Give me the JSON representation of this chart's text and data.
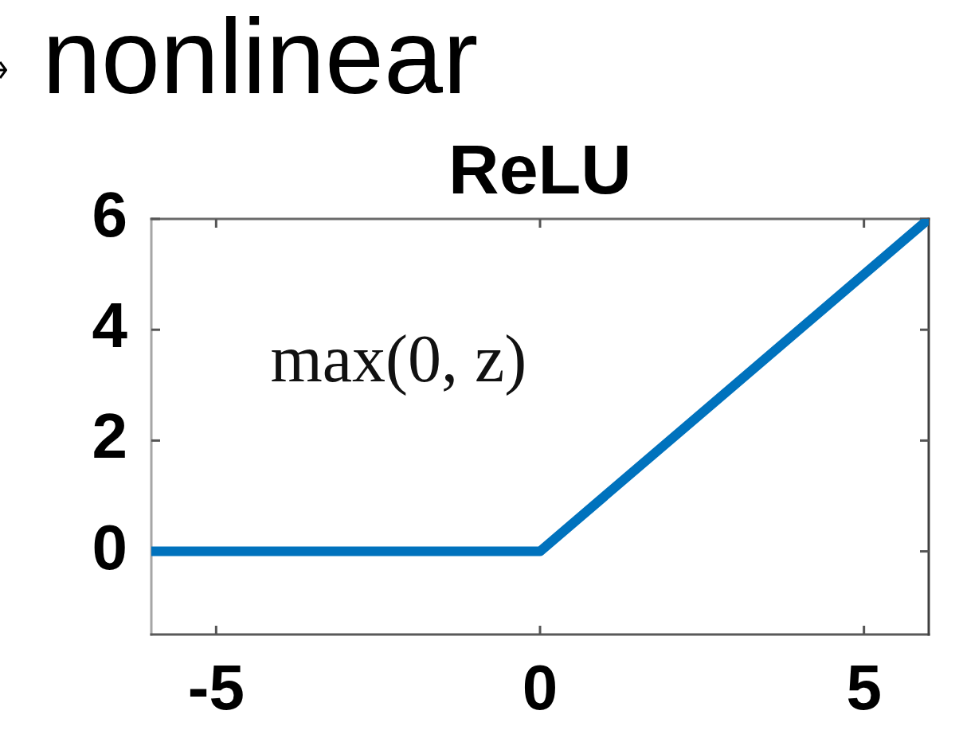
{
  "chart_data": {
    "type": "line",
    "title": "ReLU",
    "annotations": [
      "nonlinear",
      "max(0, z)"
    ],
    "x": [
      -6,
      0,
      6
    ],
    "series": [
      {
        "color": "#0072bd",
        "values": [
          0,
          0,
          6
        ]
      }
    ],
    "xlim": [
      -6,
      6
    ],
    "ylim": [
      -1.5,
      6
    ],
    "xticks": [
      -5,
      0,
      5
    ],
    "yticks": [
      0,
      2,
      4,
      6
    ],
    "marker": "none"
  }
}
